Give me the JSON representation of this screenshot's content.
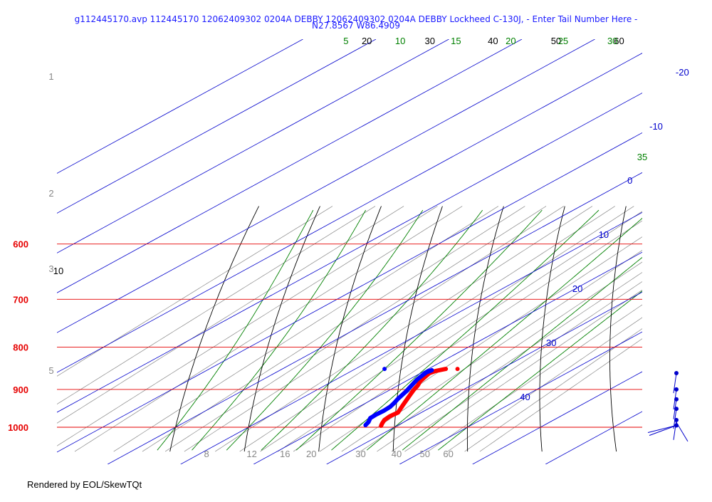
{
  "chart_data": {
    "type": "skew-t",
    "title_line1": "g112445170.avp 112445170 12062409302 0204A DEBBY 12062409302 0204A DEBBY Lockheed C-130J, - Enter Tail Number Here -",
    "title_line2": "N27.8567 W86.4909",
    "footer": "Rendered by EOL/SkewTQt",
    "colors": {
      "isobar": "#e60000",
      "isotherm": "#0000cc",
      "dry_adiabat": "#000000",
      "moist_adiabat": "#008000",
      "mixing_ratio": "#888888",
      "temperature_trace": "#ff0000",
      "dewpoint_trace": "#0000ff",
      "wind_barb": "#0000cc"
    },
    "pressure_levels": [
      {
        "label": "600",
        "p": 600
      },
      {
        "label": "700",
        "p": 700
      },
      {
        "label": "800",
        "p": 800
      },
      {
        "label": "900",
        "p": 900
      },
      {
        "label": "1000",
        "p": 1000
      }
    ],
    "isotherm_labels": [
      {
        "label": "-20",
        "t": -20
      },
      {
        "label": "-10",
        "t": -10
      },
      {
        "label": "0",
        "t": 0
      },
      {
        "label": "10",
        "t": 10
      },
      {
        "label": "20",
        "t": 20
      },
      {
        "label": "30",
        "t": 30
      },
      {
        "label": "40",
        "t": 40
      }
    ],
    "dry_adiabat_labels": [
      {
        "label": "10",
        "theta": 10
      },
      {
        "label": "20",
        "theta": 20
      },
      {
        "label": "30",
        "theta": 30
      },
      {
        "label": "40",
        "theta": 40
      },
      {
        "label": "50",
        "theta": 50
      },
      {
        "label": "60",
        "theta": 60
      }
    ],
    "moist_adiabat_labels": [
      {
        "label": "5",
        "theta_w": 5
      },
      {
        "label": "10",
        "theta_w": 10
      },
      {
        "label": "15",
        "theta_w": 15
      },
      {
        "label": "20",
        "theta_w": 20
      },
      {
        "label": "25",
        "theta_w": 25
      },
      {
        "label": "30",
        "theta_w": 30
      },
      {
        "label": "35",
        "theta_w": 35
      }
    ],
    "mixing_ratio_labels": [
      {
        "label": "8",
        "w": 8
      },
      {
        "label": "12",
        "w": 12
      },
      {
        "label": "16",
        "w": 16
      },
      {
        "label": "20",
        "w": 20
      },
      {
        "label": "30",
        "w": 30
      },
      {
        "label": "40",
        "w": 40
      },
      {
        "label": "50",
        "w": 50
      },
      {
        "label": "60",
        "w": 60
      }
    ],
    "height_labels": [
      {
        "label": "1",
        "km": 1
      },
      {
        "label": "2",
        "km": 2
      },
      {
        "label": "3",
        "km": 3
      },
      {
        "label": "5",
        "km": 5
      }
    ],
    "temperature_profile": [
      {
        "p": 850,
        "t": 22.4
      },
      {
        "p": 852,
        "t": 22.0
      },
      {
        "p": 855,
        "t": 21.5
      },
      {
        "p": 860,
        "t": 21.2
      },
      {
        "p": 865,
        "t": 21.4
      },
      {
        "p": 870,
        "t": 21.6
      },
      {
        "p": 880,
        "t": 22.0
      },
      {
        "p": 890,
        "t": 22.7
      },
      {
        "p": 900,
        "t": 23.2
      },
      {
        "p": 910,
        "t": 23.8
      },
      {
        "p": 920,
        "t": 24.4
      },
      {
        "p": 930,
        "t": 25.0
      },
      {
        "p": 940,
        "t": 25.6
      },
      {
        "p": 950,
        "t": 26.2
      },
      {
        "p": 960,
        "t": 26.8
      },
      {
        "p": 970,
        "t": 26.6
      },
      {
        "p": 980,
        "t": 26.8
      },
      {
        "p": 990,
        "t": 27.4
      },
      {
        "p": 996,
        "t": 27.8
      }
    ],
    "dewpoint_profile": [
      {
        "p": 853,
        "t": 20.8
      },
      {
        "p": 858,
        "t": 20.6
      },
      {
        "p": 865,
        "t": 20.8
      },
      {
        "p": 875,
        "t": 21.1
      },
      {
        "p": 885,
        "t": 21.6
      },
      {
        "p": 895,
        "t": 22.1
      },
      {
        "p": 905,
        "t": 22.6
      },
      {
        "p": 915,
        "t": 23.0
      },
      {
        "p": 925,
        "t": 23.4
      },
      {
        "p": 935,
        "t": 23.9
      },
      {
        "p": 945,
        "t": 24.3
      },
      {
        "p": 955,
        "t": 24.4
      },
      {
        "p": 965,
        "t": 24.3
      },
      {
        "p": 975,
        "t": 24.4
      },
      {
        "p": 985,
        "t": 25.1
      },
      {
        "p": 994,
        "t": 25.5
      }
    ],
    "isolated_temperature_point": {
      "p": 850,
      "t": 24.0
    },
    "isolated_dewpoint_point": {
      "p": 850,
      "t": 14.0
    },
    "wind_barb_pressures": [
      860,
      900,
      925,
      950,
      980,
      995
    ]
  }
}
